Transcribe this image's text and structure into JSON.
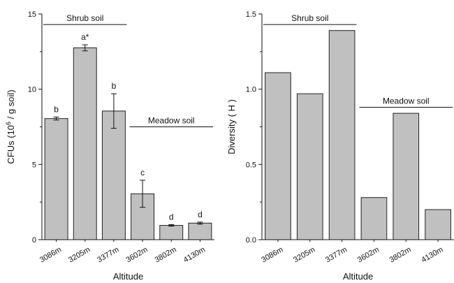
{
  "chart_data": [
    {
      "type": "bar",
      "categories": [
        "3086m",
        "3205m",
        "3377m",
        "3602m",
        "3802m",
        "4130m"
      ],
      "values": [
        8.05,
        12.75,
        8.55,
        3.05,
        0.95,
        1.1
      ],
      "error": [
        0.1,
        0.2,
        1.15,
        0.9,
        0.05,
        0.07
      ],
      "bar_labels": [
        "b",
        "a*",
        "b",
        "c",
        "d",
        "d"
      ],
      "xlabel": "Altitude",
      "ylabel": "CFUs (10^6 / g soil)",
      "ylabel_parts": {
        "prefix": "CFUs (10",
        "sup": "6",
        "suffix": " / g soil)"
      },
      "ylim": [
        0,
        15
      ],
      "yticks": [
        0,
        5,
        10,
        15
      ],
      "ytick_labels": [
        "0",
        "5",
        "10",
        "15"
      ],
      "groups": [
        {
          "label": "Shrub soil",
          "from": 0,
          "to": 2
        },
        {
          "label": "Meadow soil",
          "from": 3,
          "to": 5
        }
      ],
      "group_line_y": [
        14.3,
        7.5
      ],
      "grid": false,
      "bar_color": "#c0c0c0"
    },
    {
      "type": "bar",
      "categories": [
        "3086m",
        "3205m",
        "3377m",
        "3602m",
        "3802m",
        "4130m"
      ],
      "values": [
        1.11,
        0.97,
        1.39,
        0.28,
        0.84,
        0.2
      ],
      "xlabel": "Altitude",
      "ylabel": "Diversity ( H )",
      "ylim": [
        0,
        1.5
      ],
      "yticks": [
        0,
        0.5,
        1.0,
        1.5
      ],
      "ytick_labels": [
        "0.0",
        "0.5",
        "1.0",
        "1.5"
      ],
      "groups": [
        {
          "label": "Shrub soil",
          "from": 0,
          "to": 2
        },
        {
          "label": "Meadow soil",
          "from": 3,
          "to": 5
        }
      ],
      "group_line_y": [
        1.43,
        0.88
      ],
      "grid": false,
      "bar_color": "#c0c0c0"
    }
  ]
}
